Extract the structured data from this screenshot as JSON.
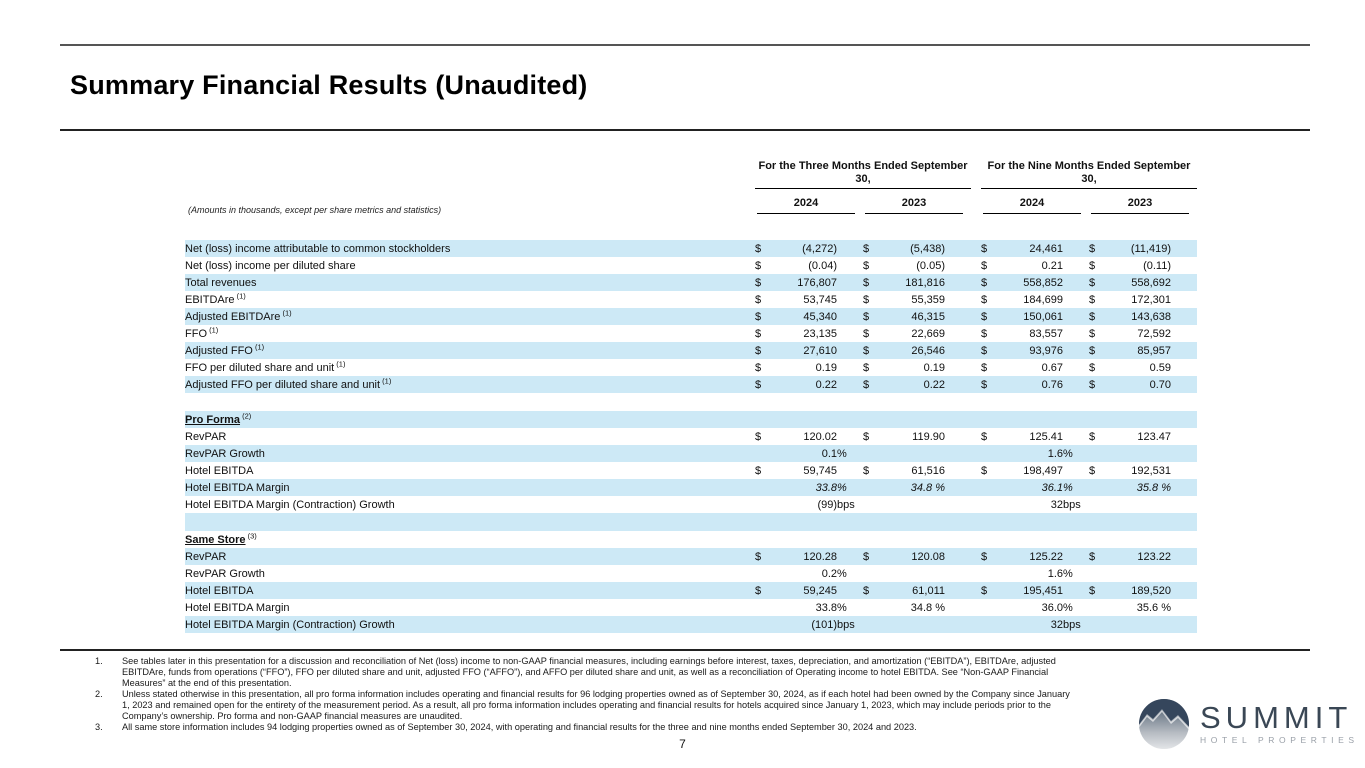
{
  "page": {
    "title": "Summary Financial Results (Unaudited)",
    "page_number": "7"
  },
  "colors": {
    "row_highlight": "#cde9f6",
    "logo_navy": "#35465c",
    "logo_gray": "#9aa0a8"
  },
  "table": {
    "note": "(Amounts in thousands, except per share metrics and statistics)",
    "period_headers": [
      "For the Three Months Ended September 30,",
      "For the Nine Months Ended September 30,"
    ],
    "year_headers": [
      "2024",
      "2023",
      "2024",
      "2023"
    ],
    "rows": [
      {
        "type": "data",
        "shaded": true,
        "label": "Net (loss) income attributable to common stockholders",
        "sup": "",
        "cells": [
          {
            "d": "$",
            "v": "(4,272)",
            "u": ""
          },
          {
            "d": "$",
            "v": "(5,438)",
            "u": ""
          },
          {
            "d": "$",
            "v": "24,461",
            "u": ""
          },
          {
            "d": "$",
            "v": "(11,419)",
            "u": ""
          }
        ]
      },
      {
        "type": "data",
        "shaded": false,
        "label": "Net (loss) income per diluted share",
        "sup": "",
        "cells": [
          {
            "d": "$",
            "v": "(0.04)",
            "u": ""
          },
          {
            "d": "$",
            "v": "(0.05)",
            "u": ""
          },
          {
            "d": "$",
            "v": "0.21",
            "u": ""
          },
          {
            "d": "$",
            "v": "(0.11)",
            "u": ""
          }
        ]
      },
      {
        "type": "data",
        "shaded": true,
        "label": "Total revenues",
        "sup": "",
        "cells": [
          {
            "d": "$",
            "v": "176,807",
            "u": ""
          },
          {
            "d": "$",
            "v": "181,816",
            "u": ""
          },
          {
            "d": "$",
            "v": "558,852",
            "u": ""
          },
          {
            "d": "$",
            "v": "558,692",
            "u": ""
          }
        ]
      },
      {
        "type": "data",
        "shaded": false,
        "label": "EBITDAre",
        "sup": "(1)",
        "cells": [
          {
            "d": "$",
            "v": "53,745",
            "u": ""
          },
          {
            "d": "$",
            "v": "55,359",
            "u": ""
          },
          {
            "d": "$",
            "v": "184,699",
            "u": ""
          },
          {
            "d": "$",
            "v": "172,301",
            "u": ""
          }
        ]
      },
      {
        "type": "data",
        "shaded": true,
        "label": "Adjusted EBITDAre",
        "sup": "(1)",
        "cells": [
          {
            "d": "$",
            "v": "45,340",
            "u": ""
          },
          {
            "d": "$",
            "v": "46,315",
            "u": ""
          },
          {
            "d": "$",
            "v": "150,061",
            "u": ""
          },
          {
            "d": "$",
            "v": "143,638",
            "u": ""
          }
        ]
      },
      {
        "type": "data",
        "shaded": false,
        "label": "FFO",
        "sup": "(1)",
        "cells": [
          {
            "d": "$",
            "v": "23,135",
            "u": ""
          },
          {
            "d": "$",
            "v": "22,669",
            "u": ""
          },
          {
            "d": "$",
            "v": "83,557",
            "u": ""
          },
          {
            "d": "$",
            "v": "72,592",
            "u": ""
          }
        ]
      },
      {
        "type": "data",
        "shaded": true,
        "label": "Adjusted FFO",
        "sup": "(1)",
        "cells": [
          {
            "d": "$",
            "v": "27,610",
            "u": ""
          },
          {
            "d": "$",
            "v": "26,546",
            "u": ""
          },
          {
            "d": "$",
            "v": "93,976",
            "u": ""
          },
          {
            "d": "$",
            "v": "85,957",
            "u": ""
          }
        ]
      },
      {
        "type": "data",
        "shaded": false,
        "label": "FFO per diluted share and unit",
        "sup": "(1)",
        "cells": [
          {
            "d": "$",
            "v": "0.19",
            "u": ""
          },
          {
            "d": "$",
            "v": "0.19",
            "u": ""
          },
          {
            "d": "$",
            "v": "0.67",
            "u": ""
          },
          {
            "d": "$",
            "v": "0.59",
            "u": ""
          }
        ]
      },
      {
        "type": "data",
        "shaded": true,
        "label": "Adjusted FFO per diluted share and unit",
        "sup": "(1)",
        "cells": [
          {
            "d": "$",
            "v": "0.22",
            "u": ""
          },
          {
            "d": "$",
            "v": "0.22",
            "u": ""
          },
          {
            "d": "$",
            "v": "0.76",
            "u": ""
          },
          {
            "d": "$",
            "v": "0.70",
            "u": ""
          }
        ]
      },
      {
        "type": "spacer",
        "shaded": false
      },
      {
        "type": "section",
        "shaded": true,
        "label": "Pro Forma",
        "sup": "(2)"
      },
      {
        "type": "data",
        "shaded": false,
        "label": "RevPAR",
        "sup": "",
        "cells": [
          {
            "d": "$",
            "v": "120.02",
            "u": ""
          },
          {
            "d": "$",
            "v": "119.90",
            "u": ""
          },
          {
            "d": "$",
            "v": "125.41",
            "u": ""
          },
          {
            "d": "$",
            "v": "123.47",
            "u": ""
          }
        ]
      },
      {
        "type": "data",
        "shaded": true,
        "label": "RevPAR Growth",
        "sup": "",
        "cells": [
          {
            "d": "",
            "v": "0.1",
            "u": "%"
          },
          {
            "d": "",
            "v": "",
            "u": ""
          },
          {
            "d": "",
            "v": "1.6",
            "u": "%"
          },
          {
            "d": "",
            "v": "",
            "u": ""
          }
        ]
      },
      {
        "type": "data",
        "shaded": false,
        "label": "Hotel EBITDA",
        "sup": "",
        "cells": [
          {
            "d": "$",
            "v": "59,745",
            "u": ""
          },
          {
            "d": "$",
            "v": "61,516",
            "u": ""
          },
          {
            "d": "$",
            "v": "198,497",
            "u": ""
          },
          {
            "d": "$",
            "v": "192,531",
            "u": ""
          }
        ]
      },
      {
        "type": "data",
        "shaded": true,
        "italic": true,
        "label": "Hotel EBITDA Margin",
        "sup": "",
        "cells": [
          {
            "d": "",
            "v": "33.8",
            "u": "%"
          },
          {
            "d": "",
            "v": "34.8 %",
            "u": ""
          },
          {
            "d": "",
            "v": "36.1",
            "u": "%"
          },
          {
            "d": "",
            "v": "35.8 %",
            "u": ""
          }
        ]
      },
      {
        "type": "data",
        "shaded": false,
        "label": "Hotel EBITDA Margin (Contraction) Growth",
        "sup": "",
        "cells": [
          {
            "d": "",
            "v": "(99)",
            "u": "bps"
          },
          {
            "d": "",
            "v": "",
            "u": ""
          },
          {
            "d": "",
            "v": "32",
            "u": "bps"
          },
          {
            "d": "",
            "v": "",
            "u": ""
          }
        ]
      },
      {
        "type": "spacer",
        "shaded": true
      },
      {
        "type": "section",
        "shaded": false,
        "label": "Same Store",
        "sup": "(3)"
      },
      {
        "type": "data",
        "shaded": true,
        "label": "RevPAR",
        "sup": "",
        "cells": [
          {
            "d": "$",
            "v": "120.28",
            "u": ""
          },
          {
            "d": "$",
            "v": "120.08",
            "u": ""
          },
          {
            "d": "$",
            "v": "125.22",
            "u": ""
          },
          {
            "d": "$",
            "v": "123.22",
            "u": ""
          }
        ]
      },
      {
        "type": "data",
        "shaded": false,
        "label": "RevPAR Growth",
        "sup": "",
        "cells": [
          {
            "d": "",
            "v": "0.2",
            "u": "%"
          },
          {
            "d": "",
            "v": "",
            "u": ""
          },
          {
            "d": "",
            "v": "1.6",
            "u": "%"
          },
          {
            "d": "",
            "v": "",
            "u": ""
          }
        ]
      },
      {
        "type": "data",
        "shaded": true,
        "label": "Hotel EBITDA",
        "sup": "",
        "cells": [
          {
            "d": "$",
            "v": "59,245",
            "u": ""
          },
          {
            "d": "$",
            "v": "61,011",
            "u": ""
          },
          {
            "d": "$",
            "v": "195,451",
            "u": ""
          },
          {
            "d": "$",
            "v": "189,520",
            "u": ""
          }
        ]
      },
      {
        "type": "data",
        "shaded": false,
        "label": "Hotel EBITDA Margin",
        "sup": "",
        "cells": [
          {
            "d": "",
            "v": "33.8",
            "u": "%"
          },
          {
            "d": "",
            "v": "34.8 %",
            "u": ""
          },
          {
            "d": "",
            "v": "36.0",
            "u": "%"
          },
          {
            "d": "",
            "v": "35.6 %",
            "u": ""
          }
        ]
      },
      {
        "type": "data",
        "shaded": true,
        "label": "Hotel EBITDA Margin (Contraction) Growth",
        "sup": "",
        "cells": [
          {
            "d": "",
            "v": "(101)",
            "u": "bps"
          },
          {
            "d": "",
            "v": "",
            "u": ""
          },
          {
            "d": "",
            "v": "32",
            "u": "bps"
          },
          {
            "d": "",
            "v": "",
            "u": ""
          }
        ]
      }
    ]
  },
  "footnotes": [
    {
      "num": "1.",
      "text": "See tables later in this presentation for a discussion and reconciliation of Net (loss) income to non-GAAP financial measures, including earnings before interest, taxes, depreciation, and amortization (“EBITDA”), EBITDAre, adjusted EBITDAre, funds from operations (“FFO”), FFO per diluted share and unit, adjusted FFO (“AFFO”), and AFFO per diluted share and unit, as well as a reconciliation of Operating income to hotel EBITDA. See “Non-GAAP Financial Measures” at the end of this presentation."
    },
    {
      "num": "2.",
      "text": "Unless stated otherwise in this presentation, all pro forma information includes operating and financial results for 96 lodging properties owned as of September 30, 2024, as if each hotel had been owned by the Company since January 1, 2023 and remained open for the entirety of the measurement period. As a result, all pro forma information includes operating and financial results for hotels acquired since January 1, 2023, which may include periods prior to the Company’s ownership. Pro forma and non-GAAP financial measures are unaudited."
    },
    {
      "num": "3.",
      "text": "All same store information includes 94 lodging properties owned as of September 30, 2024, with operating and financial results for the three and nine months ended September 30, 2024 and 2023."
    }
  ],
  "logo": {
    "name": "SUMMIT",
    "subtitle": "HOTEL PROPERTIES"
  }
}
